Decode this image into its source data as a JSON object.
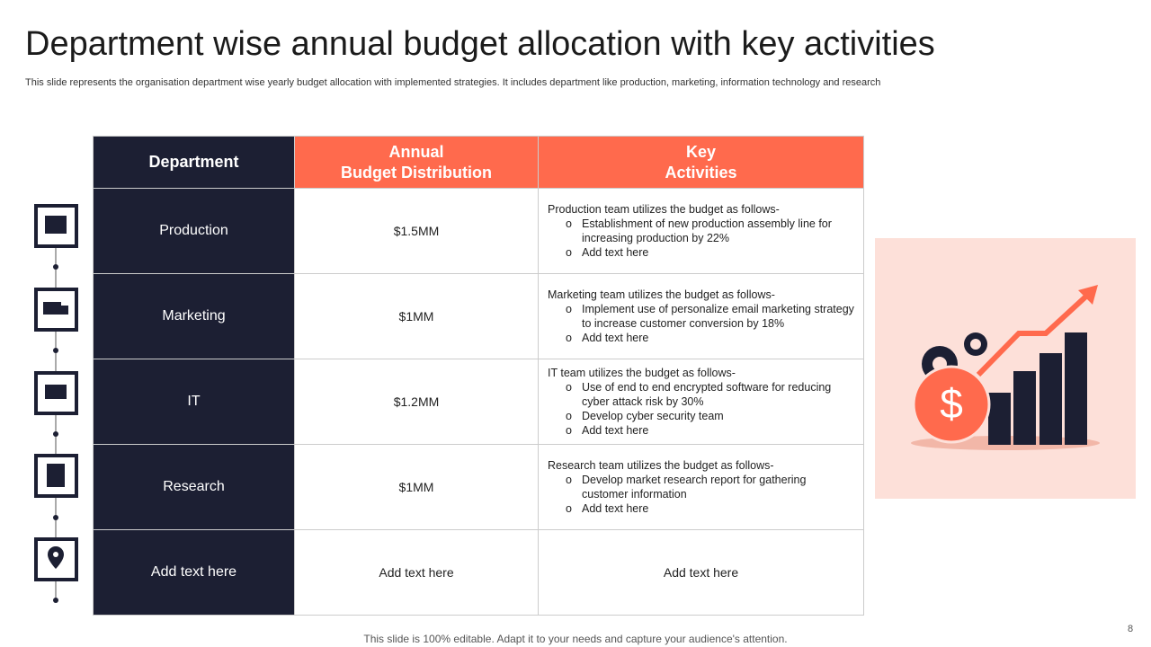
{
  "title": "Department wise annual budget allocation with key activities",
  "subtitle": "This slide represents the organisation department wise yearly budget allocation with implemented strategies. It includes department like production, marketing, information technology and research",
  "table": {
    "headers": [
      {
        "lines": [
          "Department"
        ]
      },
      {
        "lines": [
          "Annual",
          "Budget Distribution"
        ]
      },
      {
        "lines": [
          "Key",
          "Activities"
        ]
      }
    ],
    "rows": [
      {
        "department": "Production",
        "budget": "$1.5MM",
        "activities": {
          "intro": "Production team utilizes the budget as follows-",
          "bullets": [
            "Establishment of new production assembly line for increasing production by 22%",
            "Add text here"
          ]
        }
      },
      {
        "department": "Marketing",
        "budget": "$1MM",
        "activities": {
          "intro": "Marketing team utilizes the budget as follows-",
          "bullets": [
            "Implement use of personalize email marketing strategy to increase customer conversion by 18%",
            "Add text here"
          ]
        }
      },
      {
        "department": "IT",
        "budget": "$1.2MM",
        "activities": {
          "intro": "IT team utilizes the budget as follows-",
          "bullets": [
            "Use of end to end encrypted software for reducing cyber attack risk by 30%",
            "Develop cyber security team",
            "Add text here"
          ]
        }
      },
      {
        "department": "Research",
        "budget": "$1MM",
        "activities": {
          "intro": "Research team utilizes the budget as follows-",
          "bullets": [
            "Develop market research report for gathering customer information",
            "Add text here"
          ]
        }
      },
      {
        "department": "Add text here",
        "budget": "Add text here",
        "activities": {
          "text": "Add text here"
        }
      }
    ]
  },
  "footer": "This slide is 100% editable. Adapt it to your needs and capture your audience's attention.",
  "page_number": "8"
}
